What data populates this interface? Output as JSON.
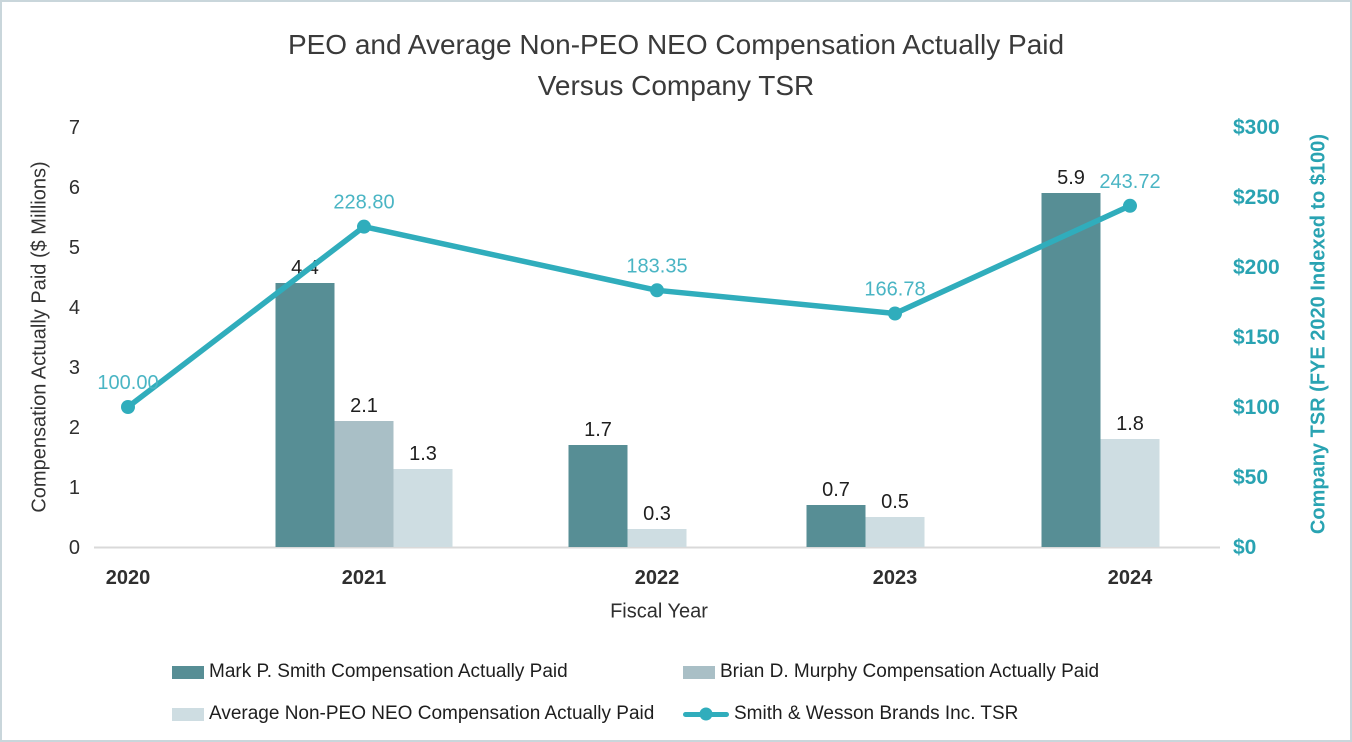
{
  "chart_data": {
    "type": "combo-bar-line",
    "title_line1": "PEO and Average Non-PEO NEO Compensation Actually Paid",
    "title_line2": "Versus Company TSR",
    "x_axis_label": "Fiscal Year",
    "categories": [
      "2020",
      "2021",
      "2022",
      "2023",
      "2024"
    ],
    "left_axis": {
      "label": "Compensation Actually Paid ($ Millions)",
      "min": 0,
      "max": 7,
      "tick_step": 1,
      "tick_labels": [
        "0",
        "1",
        "2",
        "3",
        "4",
        "5",
        "6",
        "7"
      ]
    },
    "right_axis": {
      "label": "Company TSR (FYE 2020 Indexed to $100)",
      "min": 0,
      "max": 300,
      "tick_step": 50,
      "tick_labels": [
        "$0",
        "$50",
        "$100",
        "$150",
        "$200",
        "$250",
        "$300"
      ],
      "color": "#29a3b2"
    },
    "grid": "off",
    "bar_series": [
      {
        "name": "Mark P. Smith Compensation Actually Paid",
        "color": "#578e95",
        "values": [
          null,
          4.4,
          1.7,
          0.7,
          5.9
        ],
        "labels": [
          null,
          "4.4",
          "1.7",
          "0.7",
          "5.9"
        ]
      },
      {
        "name": "Brian D. Murphy Compensation Actually Paid",
        "color": "#a9bfc6",
        "values": [
          null,
          2.1,
          null,
          null,
          null
        ],
        "labels": [
          null,
          "2.1",
          null,
          null,
          null
        ]
      },
      {
        "name": "Average Non-PEO NEO Compensation Actually Paid",
        "color": "#cedde2",
        "values": [
          null,
          1.3,
          0.3,
          0.5,
          1.8
        ],
        "labels": [
          null,
          "1.3",
          "0.3",
          "0.5",
          "1.8"
        ]
      }
    ],
    "line_series": {
      "name": "Smith & Wesson Brands Inc. TSR",
      "color": "#30adbc",
      "label_color": "#4ab5c4",
      "values": [
        100.0,
        228.8,
        183.35,
        166.78,
        243.72
      ],
      "labels": [
        "100.00",
        "228.80",
        "183.35",
        "166.78",
        "243.72"
      ]
    },
    "legend": {
      "position": "bottom",
      "rows": [
        [
          {
            "type": "swatch",
            "series": 0,
            "label": "Mark P. Smith Compensation Actually Paid"
          },
          {
            "type": "swatch",
            "series": 1,
            "label": "Brian D. Murphy Compensation Actually Paid"
          }
        ],
        [
          {
            "type": "swatch",
            "series": 2,
            "label": "Average Non-PEO NEO Compensation Actually Paid"
          },
          {
            "type": "line",
            "label": "Smith & Wesson Brands Inc. TSR"
          }
        ]
      ]
    }
  }
}
